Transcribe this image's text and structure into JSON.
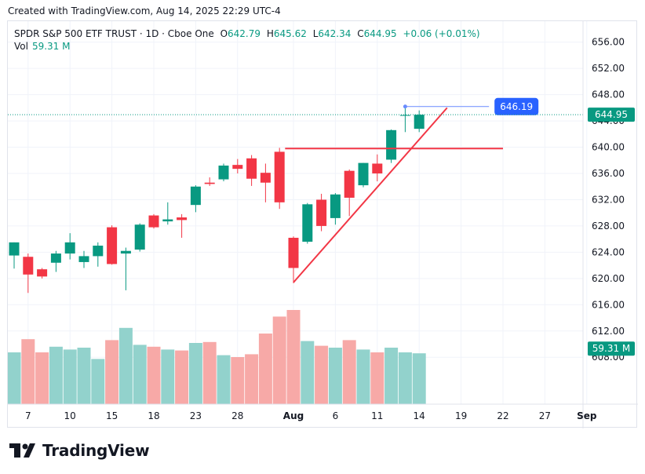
{
  "header": {
    "created_text": "Created with TradingView.com, Aug 14, 2025 22:29 UTC-4"
  },
  "legend": {
    "title": "SPDR S&P 500 ETF TRUST · 1D · Cboe One",
    "o_label": "O",
    "o_value": "642.79",
    "h_label": "H",
    "h_value": "645.62",
    "l_label": "L",
    "l_value": "642.34",
    "c_label": "C",
    "c_value": "644.95",
    "change": "+0.06 (+0.01%)",
    "vol_label": "Vol",
    "vol_value": "59.31 M"
  },
  "badges": {
    "last_price": "644.95",
    "annotation_price": "646.19",
    "last_volume": "59.31 M"
  },
  "colors": {
    "up": "#089981",
    "down": "#f23645",
    "up_vol": "#92d2cc",
    "down_vol": "#f7a9a7",
    "trendline": "#f23645",
    "hline_blue": "#2962ff",
    "badge_blue": "#2962ff",
    "grid": "#f0f3fa"
  },
  "logo": {
    "text": "TradingView",
    "icon": "tradingview-logo-icon"
  },
  "chart_data": {
    "type": "candlestick",
    "y_axis": {
      "min": 604,
      "max": 658,
      "ticks": [
        "656.00",
        "652.00",
        "648.00",
        "644.00",
        "640.00",
        "636.00",
        "632.00",
        "628.00",
        "624.00",
        "620.00",
        "616.00",
        "612.00",
        "608.00"
      ]
    },
    "x_axis": {
      "ticks": [
        {
          "label": "7",
          "index": 1
        },
        {
          "label": "10",
          "index": 4
        },
        {
          "label": "15",
          "index": 7
        },
        {
          "label": "18",
          "index": 10
        },
        {
          "label": "23",
          "index": 13
        },
        {
          "label": "28",
          "index": 16
        },
        {
          "label": "Aug",
          "index": 20,
          "bold": true
        },
        {
          "label": "6",
          "index": 23
        },
        {
          "label": "11",
          "index": 26
        },
        {
          "label": "14",
          "index": 29
        },
        {
          "label": "19",
          "index": 32
        },
        {
          "label": "22",
          "index": 35
        },
        {
          "label": "27",
          "index": 38
        },
        {
          "label": "Sep",
          "index": 41,
          "bold": true
        }
      ]
    },
    "candles": [
      {
        "o": 623.5,
        "h": 625.5,
        "l": 621.5,
        "c": 625.5
      },
      {
        "o": 623.3,
        "h": 623.8,
        "l": 617.8,
        "c": 620.6
      },
      {
        "o": 621.4,
        "h": 621.6,
        "l": 620.0,
        "c": 620.3
      },
      {
        "o": 622.4,
        "h": 624.2,
        "l": 621.0,
        "c": 623.8
      },
      {
        "o": 623.8,
        "h": 626.9,
        "l": 622.9,
        "c": 625.5
      },
      {
        "o": 622.5,
        "h": 624.2,
        "l": 621.6,
        "c": 623.4
      },
      {
        "o": 623.4,
        "h": 625.5,
        "l": 621.8,
        "c": 625.0
      },
      {
        "o": 627.8,
        "h": 628.1,
        "l": 622.1,
        "c": 622.2
      },
      {
        "o": 623.8,
        "h": 624.7,
        "l": 618.2,
        "c": 624.2
      },
      {
        "o": 624.4,
        "h": 628.4,
        "l": 624.1,
        "c": 628.2
      },
      {
        "o": 629.6,
        "h": 629.8,
        "l": 627.6,
        "c": 627.8
      },
      {
        "o": 628.7,
        "h": 631.6,
        "l": 628.2,
        "c": 629.0
      },
      {
        "o": 629.3,
        "h": 629.8,
        "l": 626.2,
        "c": 628.9
      },
      {
        "o": 631.2,
        "h": 634.2,
        "l": 630.1,
        "c": 634.0
      },
      {
        "o": 634.6,
        "h": 635.4,
        "l": 634.1,
        "c": 634.4
      },
      {
        "o": 635.1,
        "h": 637.5,
        "l": 634.8,
        "c": 637.2
      },
      {
        "o": 637.3,
        "h": 638.2,
        "l": 636.0,
        "c": 636.7
      },
      {
        "o": 638.3,
        "h": 638.8,
        "l": 634.1,
        "c": 635.2
      },
      {
        "o": 636.1,
        "h": 637.5,
        "l": 631.6,
        "c": 634.6
      },
      {
        "o": 639.3,
        "h": 639.9,
        "l": 630.6,
        "c": 631.6
      },
      {
        "o": 626.2,
        "h": 626.4,
        "l": 619.3,
        "c": 621.6
      },
      {
        "o": 625.6,
        "h": 631.5,
        "l": 625.3,
        "c": 631.3
      },
      {
        "o": 632.0,
        "h": 632.9,
        "l": 627.2,
        "c": 628.0
      },
      {
        "o": 629.2,
        "h": 633.0,
        "l": 628.2,
        "c": 632.8
      },
      {
        "o": 636.4,
        "h": 636.6,
        "l": 629.5,
        "c": 632.3
      },
      {
        "o": 634.2,
        "h": 637.6,
        "l": 633.9,
        "c": 637.6
      },
      {
        "o": 637.5,
        "h": 638.9,
        "l": 634.8,
        "c": 636.0
      },
      {
        "o": 638.1,
        "h": 642.7,
        "l": 637.6,
        "c": 642.6
      },
      {
        "o": 644.9,
        "h": 646.0,
        "l": 642.3,
        "c": 644.9
      },
      {
        "o": 642.8,
        "h": 645.6,
        "l": 642.3,
        "c": 644.95
      }
    ],
    "volumes": [
      0.55,
      0.69,
      0.55,
      0.61,
      0.58,
      0.6,
      0.48,
      0.68,
      0.81,
      0.63,
      0.61,
      0.58,
      0.57,
      0.65,
      0.66,
      0.52,
      0.5,
      0.53,
      0.75,
      0.93,
      1.0,
      0.67,
      0.62,
      0.6,
      0.68,
      0.58,
      0.55,
      0.6,
      0.55,
      0.54
    ],
    "annotations": {
      "horizontal_line": {
        "price": 639.8,
        "from_index": 19.4,
        "to_index": 35
      },
      "trend_line": {
        "from_index": 20,
        "from_price": 619.4,
        "to_index": 31,
        "to_price": 646.0
      },
      "marker_line": {
        "price": 646.19,
        "from_index": 28,
        "to_index": 34
      }
    }
  }
}
